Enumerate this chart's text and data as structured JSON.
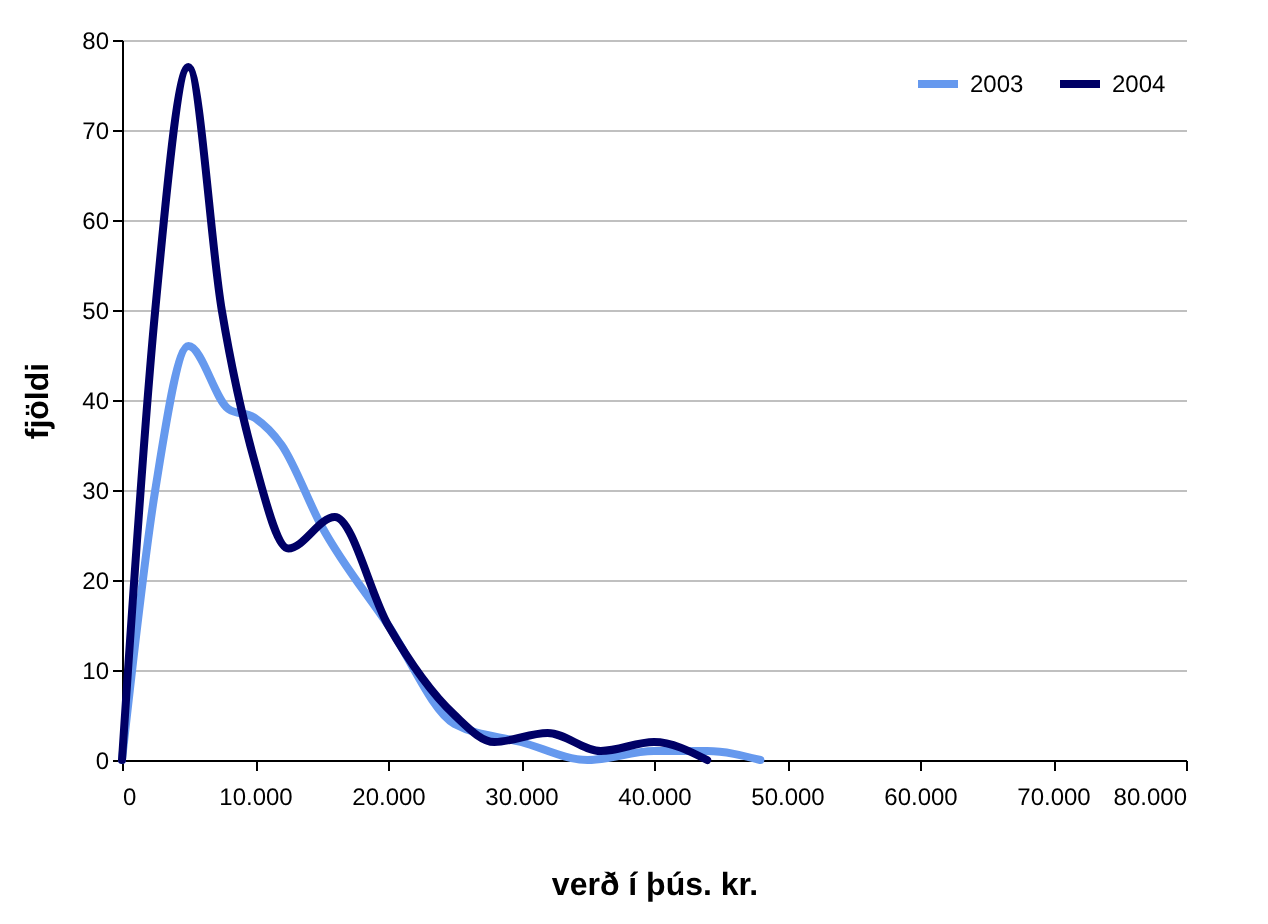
{
  "chart_data": {
    "type": "line",
    "xlabel": "verð í þús. kr.",
    "ylabel": "fjöldi",
    "xlim": [
      0,
      80000
    ],
    "xticks": [
      0,
      {
        "value": 10000,
        "label": "10.000"
      },
      {
        "value": 20000,
        "label": "20.000"
      },
      {
        "value": 30000,
        "label": "30.000"
      },
      {
        "value": 40000,
        "label": "40.000"
      },
      {
        "value": 50000,
        "label": "50.000"
      },
      {
        "value": 60000,
        "label": "60.000"
      },
      {
        "value": 70000,
        "label": "70.000"
      },
      {
        "value": 80000,
        "label": "80.000"
      }
    ],
    "ylim": [
      0,
      80
    ],
    "yticks": [
      0,
      10,
      20,
      30,
      40,
      50,
      60,
      70,
      80
    ],
    "grid": "y",
    "legend": "top right",
    "marker": "none",
    "line_style": "solid",
    "series": [
      {
        "name": "2003",
        "color": "#6699ee",
        "x": [
          0,
          2500,
          5000,
          8000,
          10000,
          12000,
          15000,
          20000,
          25000,
          30000,
          35000,
          40000,
          44000,
          48000
        ],
        "values": [
          0,
          30,
          46,
          39,
          38,
          35,
          26,
          15,
          4,
          2,
          0,
          1,
          1,
          0
        ]
      },
      {
        "name": "2004",
        "color": "#000066",
        "x": [
          0,
          2500,
          5000,
          7500,
          10000,
          12500,
          16000,
          20000,
          25000,
          28000,
          32000,
          36000,
          40000,
          44000
        ],
        "values": [
          0,
          50,
          77,
          50,
          33,
          23.5,
          27,
          15,
          5,
          2,
          3,
          1,
          2,
          0
        ]
      }
    ]
  }
}
